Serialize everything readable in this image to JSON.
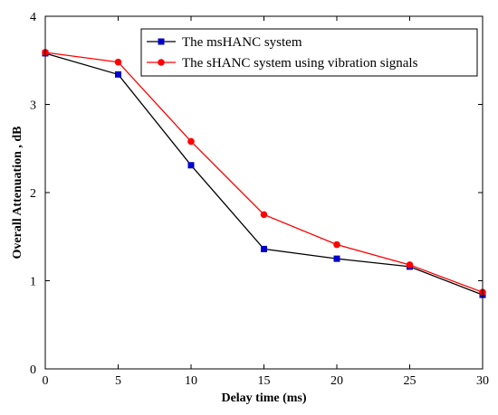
{
  "chart_data": {
    "type": "line",
    "title": "",
    "xlabel": "Delay time (ms)",
    "ylabel": "Overall Attenuation , dB",
    "xlim": [
      0,
      30
    ],
    "ylim": [
      0,
      4
    ],
    "xticks": [
      0,
      5,
      10,
      15,
      20,
      25,
      30
    ],
    "yticks": [
      0,
      1,
      2,
      3,
      4
    ],
    "grid": false,
    "legend_position": "top-right",
    "x": [
      0,
      5,
      10,
      15,
      20,
      25,
      30
    ],
    "series": [
      {
        "name": "The msHANC system",
        "values": [
          3.58,
          3.34,
          2.31,
          1.36,
          1.25,
          1.16,
          0.84
        ],
        "color": "#0000cc",
        "line_color": "#000000",
        "marker": "square"
      },
      {
        "name": "The sHANC system using vibration signals",
        "values": [
          3.59,
          3.48,
          2.58,
          1.75,
          1.41,
          1.18,
          0.87
        ],
        "color": "#ff0000",
        "line_color": "#ff0000",
        "marker": "circle"
      }
    ]
  }
}
